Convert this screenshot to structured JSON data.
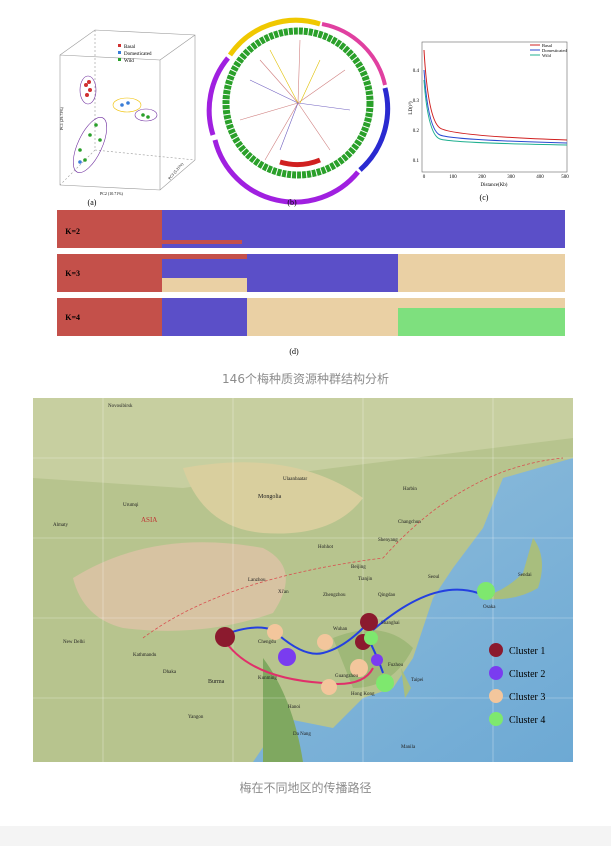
{
  "figure1": {
    "panel_labels": [
      "(a)",
      "(b)",
      "(c)",
      "(d)"
    ],
    "scatter_legend": [
      "Basal",
      "Domesticated",
      "Wild"
    ],
    "scatter_axes": [
      "PC1 (29.73%)",
      "PC2 (10.71%)",
      "PC3 (5.21%)"
    ],
    "ld_legend": [
      "Basal",
      "Domesticated",
      "Wild"
    ],
    "ld_x_label": "Distance(Kb)",
    "ld_y_label": "LD(r²)",
    "ld_x_ticks": [
      "0",
      "100",
      "200",
      "300",
      "400",
      "500"
    ],
    "ld_y_ticks": [
      "0.1",
      "0.2",
      "0.3",
      "0.4"
    ],
    "k_labels": [
      "K=2",
      "K=3",
      "K=4"
    ]
  },
  "caption1": "146个梅种质资源种群结构分析",
  "map": {
    "legend": [
      "Cluster 1",
      "Cluster 2",
      "Cluster 3",
      "Cluster 4"
    ],
    "labels": [
      "ASIA",
      "Mongolia",
      "Ulaanbaatar",
      "Beijing",
      "Tianjin",
      "Shenyang",
      "Seoul",
      "Osaka",
      "Shanghai",
      "Wuhan",
      "Chengdu",
      "Kunming",
      "Guangzhou",
      "Hong Kong",
      "Fuzhou",
      "Harbin",
      "Changchun",
      "Hohhot",
      "Lanzhou",
      "Xi'an",
      "Zhengzhou",
      "Qingdao",
      "Burma",
      "Hanoi",
      "Manila",
      "Da Nang",
      "Novosibirsk",
      "Almaty",
      "Urumqi",
      "Kathmandu",
      "New Delhi",
      "Dhaka",
      "Taipei",
      "Sendai",
      "Yangon"
    ]
  },
  "caption2": "梅在不同地区的传播路径"
}
